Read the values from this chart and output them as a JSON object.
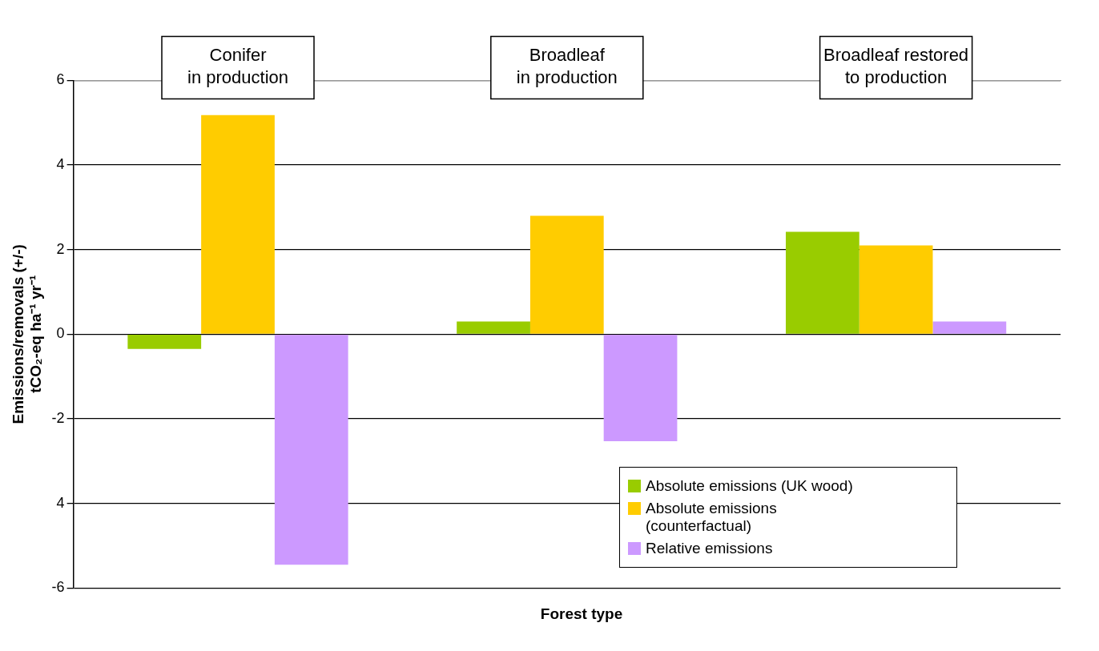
{
  "chart_data": {
    "type": "bar",
    "xlabel": "Forest type",
    "ylabel": "Emissions/removals (+/-)\ntCO₂-eq ha⁻¹ yr⁻¹",
    "categories": [
      "Conifer\nin production",
      "Broadleaf\nin production",
      "Broadleaf restored\nto production"
    ],
    "series": [
      {
        "name": "Absolute emissions (UK wood)",
        "color": "#99cc00",
        "values": [
          -0.35,
          0.3,
          2.42
        ]
      },
      {
        "name": "Absolute emissions\n(counterfactual)",
        "color": "#ffcc00",
        "values": [
          5.18,
          2.8,
          2.1
        ]
      },
      {
        "name": "Relative emissions",
        "color": "#cc99ff",
        "values": [
          -5.45,
          -2.53,
          0.3
        ]
      }
    ],
    "ylim": [
      -6,
      6
    ],
    "yticks": [
      -6,
      {
        "value": -4,
        "label": "4"
      },
      -2,
      0,
      2,
      4,
      6
    ],
    "grid": "y",
    "legend": "bottom right"
  }
}
